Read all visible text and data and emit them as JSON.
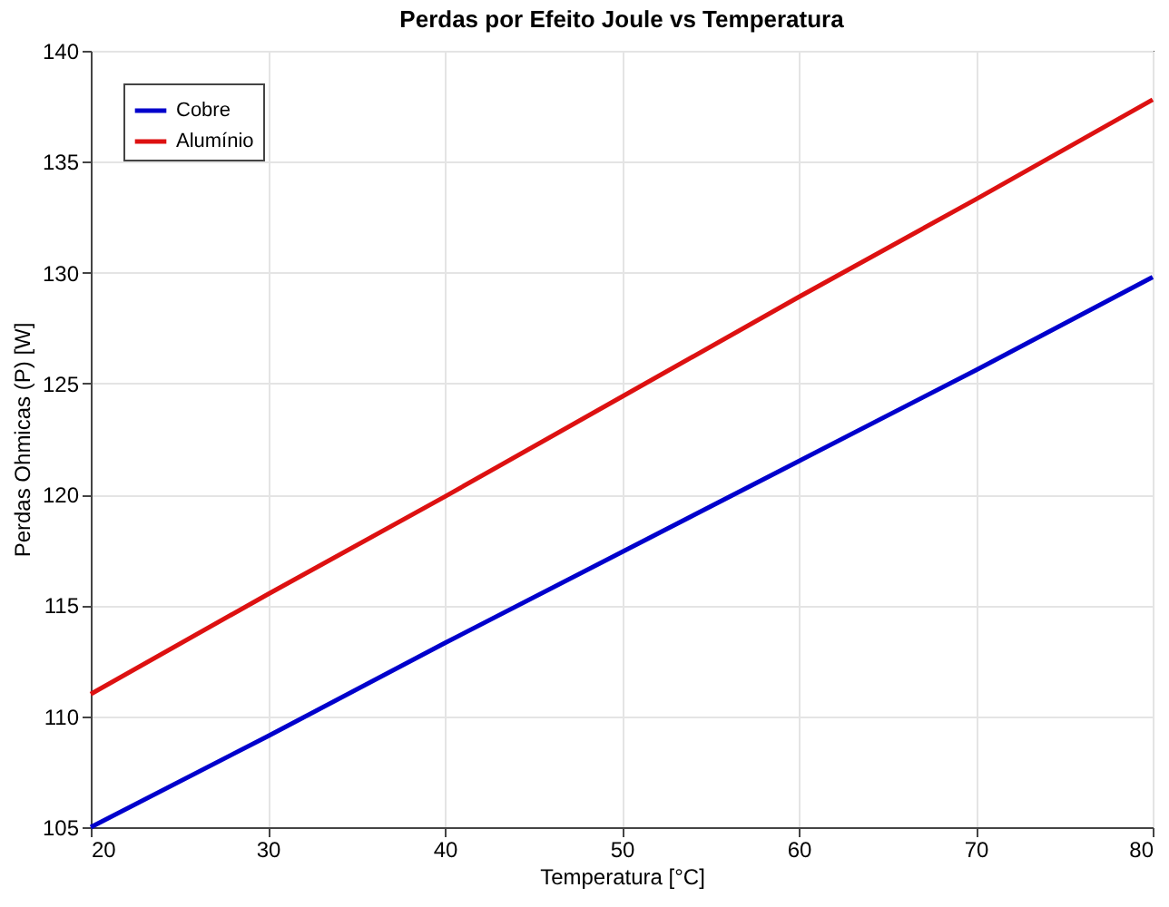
{
  "chart_data": {
    "type": "line",
    "title": "Perdas por Efeito Joule vs Temperatura",
    "xlabel": "Temperatura [°C]",
    "ylabel": "Perdas Ohmicas (P) [W]",
    "x": [
      20,
      30,
      40,
      50,
      60,
      70,
      80
    ],
    "series": [
      {
        "name": "Cobre",
        "color": "#0000cc",
        "values": [
          105,
          109.1,
          113.3,
          117.4,
          121.5,
          125.6,
          129.8
        ]
      },
      {
        "name": "Alumínio",
        "color": "#dd1111",
        "values": [
          111,
          115.5,
          119.9,
          124.4,
          128.9,
          133.3,
          137.8
        ]
      }
    ],
    "xlim": [
      20,
      80
    ],
    "xticks": [
      20,
      30,
      40,
      50,
      60,
      70,
      80
    ],
    "ylim": [
      105,
      140
    ],
    "yticks": [
      105,
      110,
      115,
      120,
      125,
      130,
      135,
      140
    ],
    "grid": true,
    "legend": "top left",
    "marker": "none",
    "line_style": "solid"
  }
}
